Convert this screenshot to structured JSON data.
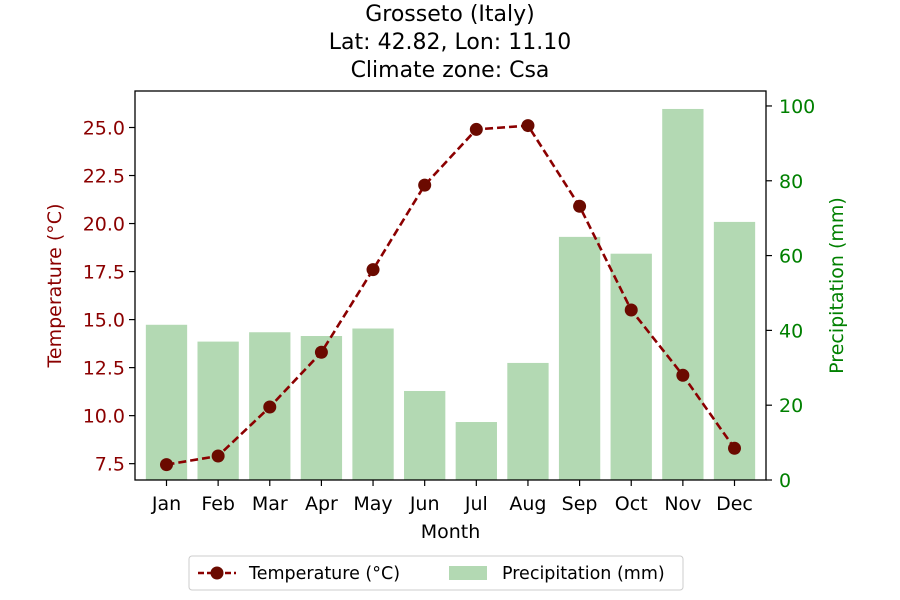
{
  "chart_data": {
    "type": "bar",
    "title_lines": [
      "Grosseto (Italy)",
      "Lat: 42.82, Lon: 11.10",
      "Climate zone: Csa"
    ],
    "xlabel": "Month",
    "categories": [
      "Jan",
      "Feb",
      "Mar",
      "Apr",
      "May",
      "Jun",
      "Jul",
      "Aug",
      "Sep",
      "Oct",
      "Nov",
      "Dec"
    ],
    "left_axis": {
      "label": "Temperature (°C)",
      "color": "#8b0000",
      "ylim": [
        6.65,
        26.9
      ],
      "ticks": [
        "7.5",
        "10.0",
        "12.5",
        "15.0",
        "17.5",
        "20.0",
        "22.5",
        "25.0"
      ],
      "tick_values": [
        7.5,
        10.0,
        12.5,
        15.0,
        17.5,
        20.0,
        22.5,
        25.0
      ]
    },
    "right_axis": {
      "label": "Precipitation (mm)",
      "color": "#008000",
      "ylim": [
        0,
        104
      ],
      "ticks": [
        "0",
        "20",
        "40",
        "60",
        "80",
        "100"
      ],
      "tick_values": [
        0,
        20,
        40,
        60,
        80,
        100
      ]
    },
    "series": [
      {
        "name": "Temperature (°C)",
        "type": "line",
        "axis": "left",
        "color": "#8b0000",
        "marker_color": "#6b0a00",
        "line_style": "dashed",
        "values": [
          7.45,
          7.9,
          10.45,
          13.3,
          17.6,
          22.0,
          24.9,
          25.1,
          20.9,
          15.5,
          12.1,
          8.3
        ]
      },
      {
        "name": "Precipitation (mm)",
        "type": "bar",
        "axis": "right",
        "color": "#b3d9b3",
        "values": [
          41.5,
          37,
          39.5,
          38.5,
          40.5,
          23.8,
          15.5,
          31.3,
          65,
          60.5,
          99.2,
          69
        ]
      }
    ],
    "legend": {
      "position": "bottom-center",
      "entries": [
        "Temperature (°C)",
        "Precipitation (mm)"
      ]
    },
    "grid": false
  }
}
